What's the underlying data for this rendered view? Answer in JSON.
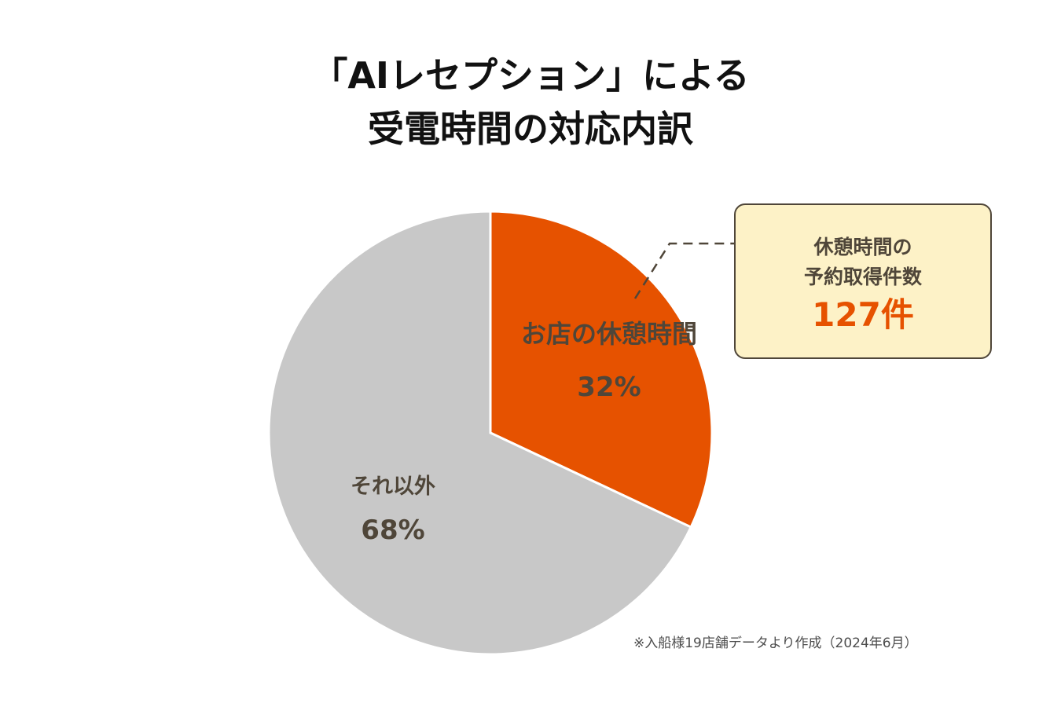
{
  "title": {
    "line1": "「AIレセプション」による",
    "line2": "受電時間の対応内訳"
  },
  "chart_data": {
    "type": "pie",
    "title": "「AIレセプション」による受電時間の対応内訳",
    "slices": [
      {
        "label": "お店の休憩時間",
        "value": 32,
        "value_label": "32%",
        "color": "#e65200"
      },
      {
        "label": "それ以外",
        "value": 68,
        "value_label": "68%",
        "color": "#c8c8c8"
      }
    ],
    "start": "12 o'clock, clockwise"
  },
  "colors": {
    "accent": "#e65200",
    "other": "#c8c8c8",
    "text": "#4f4639",
    "callout_bg": "#fdf2c7"
  },
  "callout": {
    "line1": "休憩時間の",
    "line2": "予約取得件数",
    "count": "127件"
  },
  "footnote": "※入船様19店舗データより作成（2024年6月）"
}
